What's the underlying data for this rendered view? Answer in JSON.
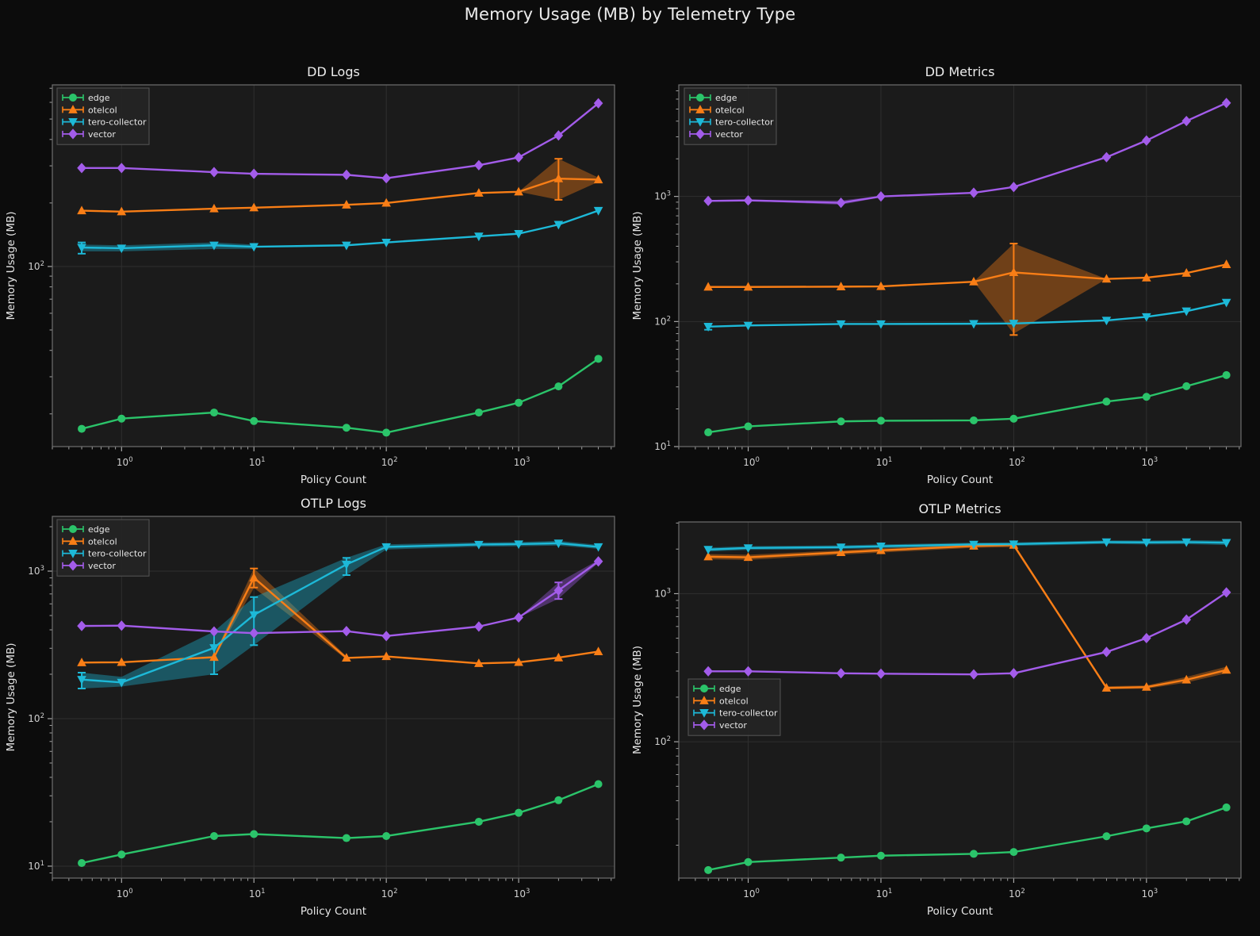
{
  "title": "Memory Usage (MB) by Telemetry Type",
  "xlabel": "Policy Count",
  "ylabel": "Memory Usage (MB)",
  "legend": [
    "edge",
    "otelcol",
    "tero-collector",
    "vector"
  ],
  "colors": {
    "edge": "#2bc46a",
    "otelcol": "#f97e16",
    "tero-collector": "#1db9d8",
    "vector": "#a35cea",
    "figure_bg": "#0c0c0c",
    "axes_bg": "#1b1b1b",
    "grid": "#2f2f2f",
    "spine": "#6f6f6f",
    "tick": "#b4b4b4",
    "tick_label": "#cfcfcf",
    "text": "#e6e6e6",
    "title": "#ececec",
    "legend_bg": "#242424",
    "legend_border": "#5a5a5a"
  },
  "x_ticks": {
    "values": [
      1,
      10,
      100,
      1000
    ],
    "exps": [
      "0",
      "1",
      "2",
      "3"
    ]
  },
  "chart_data": [
    {
      "type": "line",
      "title": "DD Logs",
      "xscale": "log",
      "yscale": "log",
      "grid": true,
      "xlim": [
        0.3,
        5300
      ],
      "ylim": [
        14,
        726
      ],
      "x": [
        0.5,
        1,
        5,
        10,
        50,
        100,
        500,
        1000,
        2000,
        4000
      ],
      "y_ticks": {
        "values": [
          100
        ],
        "exps": [
          "2"
        ]
      },
      "legend_pos": "upper-left",
      "series": [
        {
          "name": "edge",
          "marker": "circle",
          "values": [
            17,
            19,
            20.3,
            18.5,
            17.2,
            16.3,
            20.3,
            22.6,
            27,
            36.5
          ]
        },
        {
          "name": "otelcol",
          "marker": "triangle-up",
          "values": [
            184,
            182,
            188,
            190,
            196,
            200,
            223,
            226,
            261,
            258
          ],
          "err": [
            null,
            null,
            null,
            null,
            null,
            null,
            null,
            null,
            [
              207,
              324
            ],
            null
          ],
          "band": {
            "lo": [
              null,
              null,
              null,
              null,
              null,
              null,
              null,
              226,
              207,
              252
            ],
            "hi": [
              null,
              null,
              null,
              null,
              null,
              null,
              null,
              226,
              324,
              264
            ]
          }
        },
        {
          "name": "tero-collector",
          "marker": "triangle-down",
          "values": [
            123,
            122,
            126,
            124,
            126,
            130,
            139,
            143,
            158,
            184
          ],
          "err": [
            [
              115,
              130
            ],
            null,
            null,
            null,
            null,
            null,
            null,
            null,
            null,
            null
          ],
          "band": {
            "lo": [
              118,
              118,
              121,
              121,
              null,
              null,
              null,
              null,
              null,
              null
            ],
            "hi": [
              127,
              126,
              130,
              127,
              null,
              null,
              null,
              null,
              null,
              null
            ]
          }
        },
        {
          "name": "vector",
          "marker": "diamond",
          "values": [
            293,
            293,
            280,
            275,
            272,
            262,
            302,
            329,
            418,
            594
          ]
        }
      ]
    },
    {
      "type": "line",
      "title": "DD Metrics",
      "xscale": "log",
      "yscale": "log",
      "grid": true,
      "xlim": [
        0.3,
        5150
      ],
      "ylim": [
        10,
        7800
      ],
      "x": [
        0.5,
        1,
        5,
        10,
        50,
        100,
        500,
        1000,
        2000,
        4000
      ],
      "y_ticks": {
        "values": [
          10,
          100,
          1000
        ],
        "exps": [
          "1",
          "2",
          "3"
        ]
      },
      "legend_pos": "upper-left",
      "series": [
        {
          "name": "edge",
          "marker": "circle",
          "values": [
            13,
            14.5,
            15.9,
            16.1,
            16.2,
            16.7,
            22.9,
            25,
            30.4,
            37.3
          ]
        },
        {
          "name": "otelcol",
          "marker": "triangle-up",
          "values": [
            189,
            189,
            190,
            191,
            208,
            247,
            219,
            224,
            244,
            286
          ],
          "err": [
            null,
            null,
            null,
            null,
            null,
            [
              78,
              420
            ],
            null,
            null,
            null,
            null
          ],
          "band": {
            "lo": [
              null,
              null,
              null,
              null,
              208,
              80,
              219,
              null,
              null,
              null
            ],
            "hi": [
              null,
              null,
              null,
              null,
              208,
              420,
              219,
              null,
              null,
              null
            ]
          }
        },
        {
          "name": "tero-collector",
          "marker": "triangle-down",
          "values": [
            91,
            93,
            95.5,
            95.5,
            96,
            96.5,
            102,
            109,
            121,
            142
          ],
          "err": [
            [
              86,
              96
            ],
            null,
            null,
            null,
            null,
            null,
            null,
            null,
            null,
            null
          ]
        },
        {
          "name": "vector",
          "marker": "diamond",
          "values": [
            921,
            930,
            890,
            1000,
            1070,
            1190,
            2060,
            2800,
            4010,
            5590
          ],
          "band": {
            "lo": [
              null,
              920,
              858,
              985,
              null,
              null,
              null,
              null,
              null,
              null
            ],
            "hi": [
              null,
              940,
              928,
              1012,
              null,
              null,
              null,
              null,
              null,
              null
            ]
          }
        }
      ]
    },
    {
      "type": "line",
      "title": "OTLP Logs",
      "xscale": "log",
      "yscale": "log",
      "grid": true,
      "xlim": [
        0.3,
        5300
      ],
      "ylim": [
        8.3,
        2350
      ],
      "x": [
        0.5,
        1,
        5,
        10,
        50,
        100,
        500,
        1000,
        2000,
        4000
      ],
      "y_ticks": {
        "values": [
          10,
          100,
          1000
        ],
        "exps": [
          "1",
          "2",
          "3"
        ]
      },
      "legend_pos": "upper-left",
      "series": [
        {
          "name": "edge",
          "marker": "circle",
          "values": [
            10.5,
            12,
            16,
            16.5,
            15.5,
            16,
            20,
            23,
            28,
            36
          ]
        },
        {
          "name": "otelcol",
          "marker": "triangle-up",
          "values": [
            240,
            241,
            261,
            902,
            258,
            264,
            237,
            241,
            259,
            285
          ],
          "err": [
            null,
            null,
            null,
            [
              774,
              1042
            ],
            null,
            null,
            null,
            null,
            null,
            null
          ],
          "band": {
            "lo": [
              null,
              null,
              255,
              770,
              252,
              null,
              null,
              null,
              null,
              null
            ],
            "hi": [
              null,
              null,
              268,
              1045,
              265,
              null,
              null,
              null,
              null,
              null
            ]
          }
        },
        {
          "name": "tero-collector",
          "marker": "triangle-down",
          "values": [
            184,
            176,
            302,
            505,
            1110,
            1460,
            1515,
            1525,
            1545,
            1460
          ],
          "err": [
            [
              160,
              205
            ],
            null,
            [
              200,
              390
            ],
            [
              315,
              667
            ],
            [
              940,
              1230
            ],
            null,
            null,
            null,
            null,
            null
          ],
          "band": {
            "lo": [
              160,
              165,
              200,
              315,
              940,
              1400,
              1465,
              1475,
              1490,
              1415
            ],
            "hi": [
              205,
              192,
              390,
              667,
              1230,
              1520,
              1565,
              1575,
              1605,
              1505
            ]
          }
        },
        {
          "name": "vector",
          "marker": "diamond",
          "values": [
            425,
            427,
            390,
            380,
            392,
            363,
            421,
            485,
            740,
            1164
          ],
          "err": [
            null,
            null,
            null,
            null,
            null,
            null,
            null,
            null,
            [
              647,
              838
            ],
            null
          ],
          "band": {
            "lo": [
              null,
              null,
              null,
              null,
              null,
              null,
              null,
              485,
              650,
              1140
            ],
            "hi": [
              null,
              null,
              null,
              null,
              null,
              null,
              null,
              485,
              838,
              1190
            ]
          }
        }
      ]
    },
    {
      "type": "line",
      "title": "OTLP Metrics",
      "xscale": "log",
      "yscale": "log",
      "grid": true,
      "xlim": [
        0.3,
        5150
      ],
      "ylim": [
        12,
        3050
      ],
      "x": [
        0.5,
        1,
        5,
        10,
        50,
        100,
        500,
        1000,
        2000,
        4000
      ],
      "y_ticks": {
        "values": [
          100,
          1000
        ],
        "exps": [
          "2",
          "3"
        ]
      },
      "legend_pos": "center-left",
      "series": [
        {
          "name": "edge",
          "marker": "circle",
          "values": [
            13.6,
            15.4,
            16.5,
            17,
            17.5,
            18,
            23,
            26,
            29,
            36
          ]
        },
        {
          "name": "otelcol",
          "marker": "triangle-up",
          "values": [
            1777,
            1760,
            1900,
            1960,
            2100,
            2130,
            231,
            234,
            262,
            305
          ],
          "band": {
            "lo": [
              1705,
              1690,
              1835,
              1895,
              2040,
              2060,
              226,
              228,
              251,
              290
            ],
            "hi": [
              1850,
              1832,
              1962,
              2025,
              2155,
              2185,
              237,
              240,
              274,
              321
            ]
          }
        },
        {
          "name": "tero-collector",
          "marker": "triangle-down",
          "values": [
            1985,
            2035,
            2060,
            2090,
            2150,
            2160,
            2230,
            2220,
            2230,
            2210
          ],
          "band": {
            "lo": [
              1925,
              1975,
              2000,
              2030,
              2090,
              2100,
              2165,
              2150,
              2160,
              2130
            ],
            "hi": [
              2045,
              2095,
              2120,
              2150,
              2210,
              2220,
              2290,
              2285,
              2300,
              2280
            ]
          }
        },
        {
          "name": "vector",
          "marker": "diamond",
          "values": [
            299,
            299,
            290,
            288,
            285,
            290,
            404,
            501,
            668,
            1020
          ]
        }
      ]
    }
  ]
}
